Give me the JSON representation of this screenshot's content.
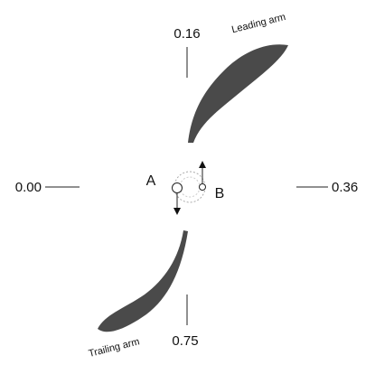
{
  "ticks": {
    "top": "0.16",
    "left": "0.00",
    "right": "0.36",
    "bottom": "0.75"
  },
  "arms": {
    "leading": "Leading arm",
    "trailing": "Trailing arm"
  },
  "points": {
    "a": "A",
    "b": "B"
  }
}
